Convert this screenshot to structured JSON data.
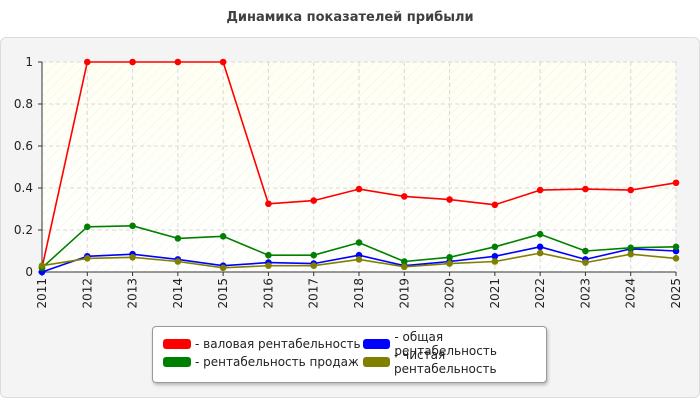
{
  "chart_data": {
    "type": "line",
    "title": "Динамика показателей прибыли",
    "xlabel": "",
    "ylabel": "",
    "ylim": [
      0,
      1
    ],
    "y_ticks": [
      "0",
      "0.2",
      "0.4",
      "0.6",
      "0.8",
      "1"
    ],
    "grid": true,
    "legend_position": "bottom",
    "categories": [
      "2011",
      "2012",
      "2013",
      "2014",
      "2015",
      "2016",
      "2017",
      "2018",
      "2019",
      "2020",
      "2021",
      "2022",
      "2023",
      "2024",
      "2025"
    ],
    "series": [
      {
        "name": "- валовая рентабельность",
        "color": "#ff0000",
        "values": [
          0.02,
          1.0,
          1.0,
          1.0,
          1.0,
          0.325,
          0.34,
          0.395,
          0.36,
          0.345,
          0.32,
          0.39,
          0.395,
          0.39,
          0.425
        ]
      },
      {
        "name": "- общая рентабельность",
        "color": "#0000ff",
        "values": [
          0.0,
          0.075,
          0.085,
          0.06,
          0.03,
          0.045,
          0.04,
          0.08,
          0.03,
          0.05,
          0.075,
          0.12,
          0.06,
          0.11,
          0.1
        ]
      },
      {
        "name": "- рентабельность продаж",
        "color": "#008000",
        "values": [
          0.02,
          0.215,
          0.22,
          0.16,
          0.17,
          0.08,
          0.08,
          0.14,
          0.05,
          0.07,
          0.12,
          0.18,
          0.1,
          0.115,
          0.12
        ]
      },
      {
        "name": "- чистая рентабельность",
        "color": "#808000",
        "values": [
          0.03,
          0.065,
          0.07,
          0.05,
          0.02,
          0.03,
          0.03,
          0.06,
          0.025,
          0.04,
          0.05,
          0.09,
          0.045,
          0.085,
          0.065
        ]
      }
    ]
  },
  "legend": {
    "items": [
      {
        "label": "- валовая рентабельность",
        "color": "#ff0000"
      },
      {
        "label": "- общая рентабельность",
        "color": "#0000ff"
      },
      {
        "label": "- рентабельность продаж",
        "color": "#008000"
      },
      {
        "label": "- чистая рентабельность",
        "color": "#808000"
      }
    ]
  }
}
